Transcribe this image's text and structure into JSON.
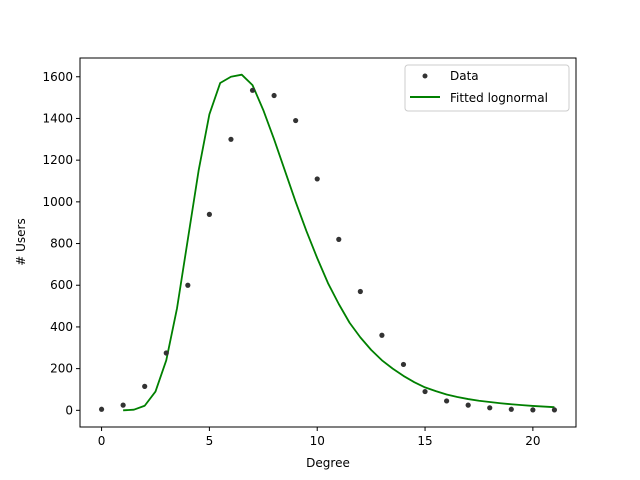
{
  "chart_data": {
    "type": "scatter",
    "xlabel": "Degree",
    "ylabel": "# Users",
    "xlim": [
      -1,
      22
    ],
    "ylim": [
      -80,
      1690
    ],
    "x_ticks": [
      0,
      5,
      10,
      15,
      20
    ],
    "y_ticks": [
      0,
      200,
      400,
      600,
      800,
      1000,
      1200,
      1400,
      1600
    ],
    "grid": false,
    "legend_position": "top-right",
    "series": [
      {
        "name": "Data",
        "type": "scatter",
        "color": "#333333",
        "x": [
          0,
          1,
          2,
          3,
          4,
          5,
          6,
          7,
          8,
          9,
          10,
          11,
          12,
          13,
          14,
          15,
          16,
          17,
          18,
          19,
          20,
          21
        ],
        "y": [
          5,
          25,
          115,
          275,
          600,
          940,
          1300,
          1535,
          1510,
          1390,
          1110,
          820,
          570,
          360,
          220,
          90,
          45,
          25,
          12,
          5,
          2,
          2
        ]
      },
      {
        "name": "Fitted lognormal",
        "type": "line",
        "color": "#008000",
        "x": [
          1,
          1.5,
          2,
          2.5,
          3,
          3.5,
          4,
          4.5,
          5,
          5.5,
          6,
          6.5,
          7,
          7.5,
          8,
          8.5,
          9,
          9.5,
          10,
          10.5,
          11,
          11.5,
          12,
          12.5,
          13,
          13.5,
          14,
          14.5,
          15,
          15.5,
          16,
          16.5,
          17,
          17.5,
          18,
          18.5,
          19,
          19.5,
          20,
          20.5,
          21
        ],
        "y": [
          0,
          3,
          22,
          90,
          240,
          490,
          820,
          1150,
          1420,
          1570,
          1600,
          1610,
          1560,
          1440,
          1300,
          1150,
          1000,
          860,
          730,
          610,
          510,
          420,
          350,
          290,
          240,
          200,
          165,
          135,
          110,
          92,
          76,
          64,
          54,
          46,
          40,
          34,
          29,
          25,
          21,
          18,
          15
        ]
      }
    ]
  }
}
